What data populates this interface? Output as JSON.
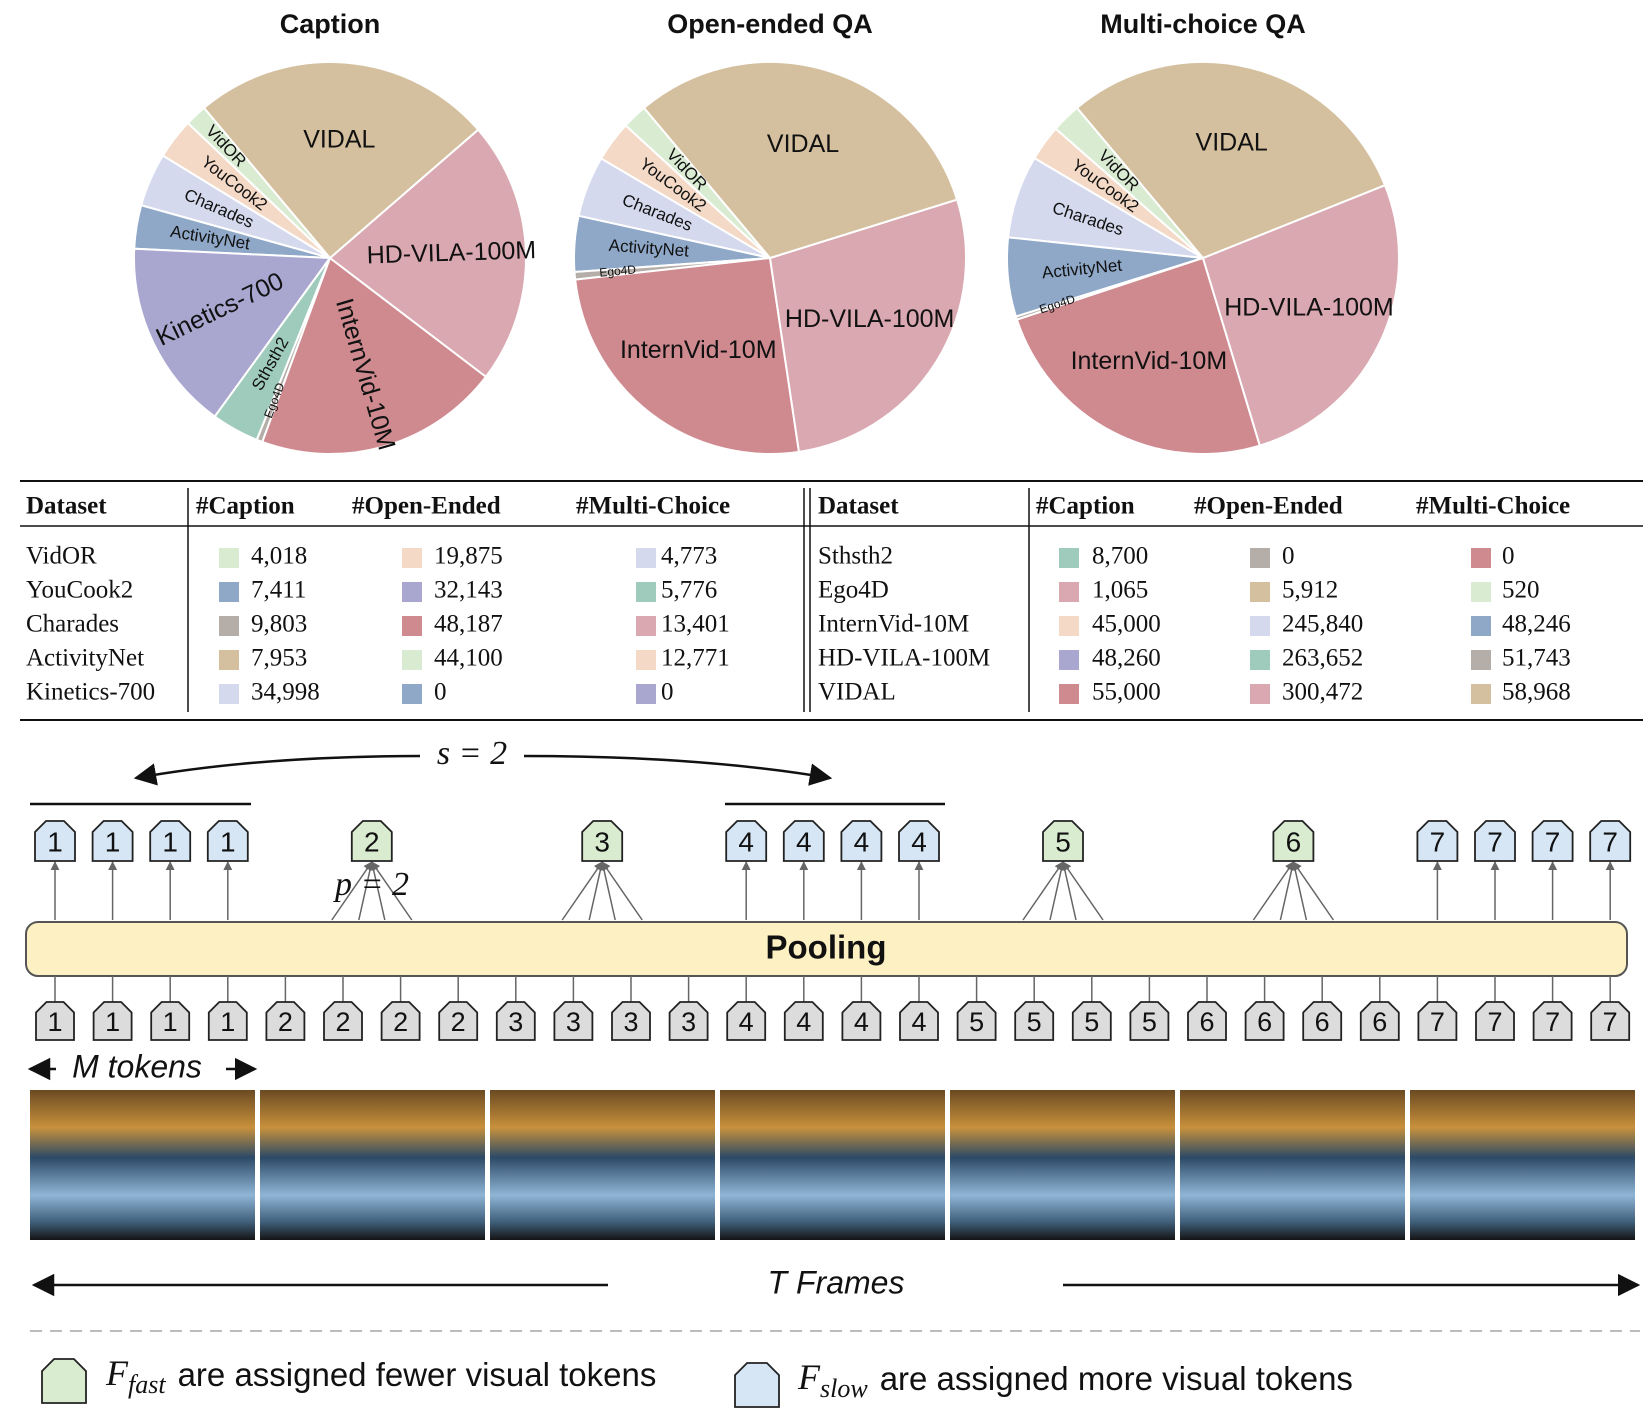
{
  "chart_data": [
    {
      "type": "pie",
      "title": "Caption",
      "categories": [
        "VidOR",
        "YouCook2",
        "Charades",
        "ActivityNet",
        "Kinetics-700",
        "Sthsth2",
        "Ego4D",
        "InternVid-10M",
        "HD-VILA-100M",
        "VIDAL"
      ],
      "values": [
        4018,
        7411,
        9803,
        7953,
        34998,
        8700,
        1065,
        45000,
        48260,
        55000
      ],
      "colors": [
        "#d9ecd2",
        "#f3d9c6",
        "#d5d9ee",
        "#8fa8c8",
        "#a9a6d0",
        "#9fcbbd",
        "#b5aea8",
        "#cf8a90",
        "#d9a8b0",
        "#d4c09e"
      ]
    },
    {
      "type": "pie",
      "title": "Open-ended QA",
      "categories": [
        "VidOR",
        "YouCook2",
        "Charades",
        "ActivityNet",
        null,
        null,
        "Ego4D",
        "InternVid-10M",
        "HD-VILA-100M",
        "VIDAL"
      ],
      "values": [
        19875,
        32143,
        48187,
        44100,
        0,
        0,
        5912,
        245840,
        263652,
        300472
      ],
      "colors": [
        "#d9ecd2",
        "#f3d9c6",
        "#d5d9ee",
        "#8fa8c8",
        "#a9a6d0",
        "#9fcbbd",
        "#b5aea8",
        "#cf8a90",
        "#d9a8b0",
        "#d4c09e"
      ]
    },
    {
      "type": "pie",
      "title": "Multi-choice QA",
      "categories": [
        "VidOR",
        "YouCook2",
        "Charades",
        "ActivityNet",
        null,
        null,
        "Ego4D",
        "InternVid-10M",
        "HD-VILA-100M",
        "VIDAL"
      ],
      "values": [
        4773,
        5776,
        13401,
        12771,
        0,
        0,
        520,
        48246,
        51743,
        58968
      ],
      "colors": [
        "#d9ecd2",
        "#f3d9c6",
        "#d5d9ee",
        "#8fa8c8",
        "#a9a6d0",
        "#9fcbbd",
        "#b5aea8",
        "#cf8a90",
        "#d9a8b0",
        "#d4c09e"
      ]
    }
  ],
  "table": {
    "headers": [
      "Dataset",
      "#Caption",
      "#Open-Ended",
      "#Multi-Choice",
      "Dataset",
      "#Caption",
      "#Open-Ended",
      "#Multi-Choice"
    ],
    "rows": [
      [
        "VidOR",
        "4,018",
        "19,875",
        "4,773",
        "Sthsth2",
        "8,700",
        "0",
        "0"
      ],
      [
        "YouCook2",
        "7,411",
        "32,143",
        "5,776",
        "Ego4D",
        "1,065",
        "5,912",
        "520"
      ],
      [
        "Charades",
        "9,803",
        "48,187",
        "13,401",
        "InternVid-10M",
        "45,000",
        "245,840",
        "48,246"
      ],
      [
        "ActivityNet",
        "7,953",
        "44,100",
        "12,771",
        "HD-VILA-100M",
        "48,260",
        "263,652",
        "51,743"
      ],
      [
        "Kinetics-700",
        "34,998",
        "0",
        "0",
        "VIDAL",
        "55,000",
        "300,472",
        "58,968"
      ]
    ],
    "swatches": [
      [
        "#d9ecd2",
        "#f3d9c6",
        "#d5d9ee",
        "#9fcbbd",
        "#b5aea8",
        "#cf8a90"
      ],
      [
        "#8fa8c8",
        "#a9a6d0",
        "#9fcbbd",
        "#d9a8b0",
        "#d4c09e",
        "#d9ecd2"
      ],
      [
        "#b5aea8",
        "#cf8a90",
        "#d9a8b0",
        "#f3d9c6",
        "#d5d9ee",
        "#8fa8c8"
      ],
      [
        "#d4c09e",
        "#d9ecd2",
        "#f3d9c6",
        "#a9a6d0",
        "#9fcbbd",
        "#b5aea8"
      ],
      [
        "#d5d9ee",
        "#8fa8c8",
        "#a9a6d0",
        "#cf8a90",
        "#d9a8b0",
        "#d4c09e"
      ]
    ]
  },
  "diagram": {
    "stride_label": "s = 2",
    "pool_label": "p = 2",
    "pooling": "Pooling",
    "output_tokens": [
      "1",
      "1",
      "1",
      "1",
      "2",
      "3",
      "4",
      "4",
      "4",
      "4",
      "5",
      "6",
      "7",
      "7",
      "7",
      "7"
    ],
    "input_tokens": [
      "1",
      "1",
      "1",
      "1",
      "2",
      "2",
      "2",
      "2",
      "3",
      "3",
      "3",
      "3",
      "4",
      "4",
      "4",
      "4",
      "5",
      "5",
      "5",
      "5",
      "6",
      "6",
      "6",
      "6",
      "7",
      "7",
      "7",
      "7"
    ],
    "m_tokens": "M tokens",
    "t_frames": "T Frames",
    "legend": [
      {
        "symbol": "F",
        "sub": "fast",
        "text": "are assigned fewer visual tokens"
      },
      {
        "symbol": "F",
        "sub": "slow",
        "text": "are assigned more visual tokens"
      }
    ]
  }
}
